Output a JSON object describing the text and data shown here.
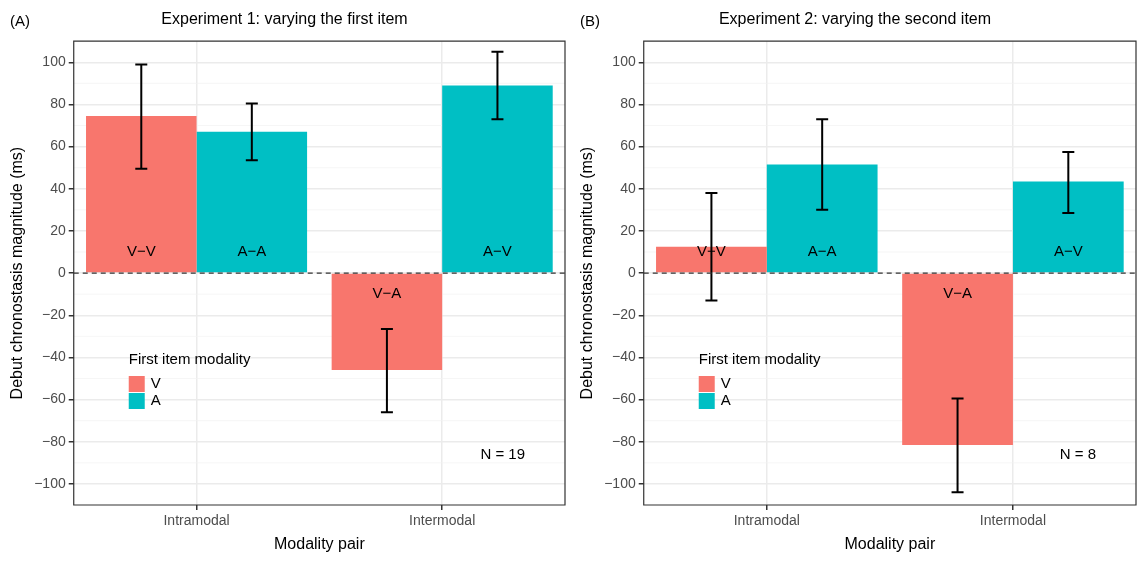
{
  "chart_data": [
    {
      "type": "bar",
      "title": "Experiment 1: varying the first item",
      "xlabel": "Modality pair",
      "ylabel": "Debut chronostasis magnitude (ms)",
      "legend_title": "First item modality",
      "annotations": [
        "(A)",
        "N = 19"
      ],
      "categories": [
        "Intramodal",
        "Intermodal"
      ],
      "series": [
        {
          "name": "V",
          "color": "#f8766d",
          "values": [
            74.5,
            -46
          ],
          "errors": [
            [
              49.5,
              99
            ],
            [
              -66,
              -26.5
            ]
          ],
          "value_labels": [
            "V−V",
            "V−A"
          ]
        },
        {
          "name": "A",
          "color": "#00bfc4",
          "values": [
            67,
            89
          ],
          "errors": [
            [
              53.5,
              80.5
            ],
            [
              73,
              105
            ]
          ],
          "value_labels": [
            "A−A",
            "A−V"
          ]
        }
      ],
      "ylim": [
        -110,
        110
      ],
      "yticks": [
        {
          "value": -100,
          "label": "−100"
        },
        {
          "value": -80,
          "label": "−80"
        },
        {
          "value": -60,
          "label": "−60"
        },
        {
          "value": -40,
          "label": "−40"
        },
        {
          "value": -20,
          "label": "−20"
        },
        0,
        20,
        40,
        60,
        80,
        100
      ],
      "ref_lines": [
        {
          "axis": "y",
          "value": 0,
          "color": "#333333",
          "line_style": "dashed"
        }
      ],
      "grid": true,
      "legend": "bottom left"
    },
    {
      "type": "bar",
      "title": "Experiment 2: varying the second item",
      "xlabel": "Modality pair",
      "ylabel": "Debut chronostasis magnitude (ms)",
      "legend_title": "First item modality",
      "annotations": [
        "(B)",
        "N = 8"
      ],
      "categories": [
        "Intramodal",
        "Intermodal"
      ],
      "series": [
        {
          "name": "V",
          "color": "#f8766d",
          "values": [
            12.5,
            -81.5
          ],
          "errors": [
            [
              -13,
              38
            ],
            [
              -104,
              -59.5
            ]
          ],
          "value_labels": [
            "V−V",
            "V−A"
          ]
        },
        {
          "name": "A",
          "color": "#00bfc4",
          "values": [
            51.5,
            43.5
          ],
          "errors": [
            [
              30,
              73
            ],
            [
              28.5,
              57.5
            ]
          ],
          "value_labels": [
            "A−A",
            "A−V"
          ]
        }
      ],
      "ylim": [
        -110,
        110
      ],
      "yticks": [
        {
          "value": -100,
          "label": "−100"
        },
        {
          "value": -80,
          "label": "−80"
        },
        {
          "value": -60,
          "label": "−60"
        },
        {
          "value": -40,
          "label": "−40"
        },
        {
          "value": -20,
          "label": "−20"
        },
        0,
        20,
        40,
        60,
        80,
        100
      ],
      "ref_lines": [
        {
          "axis": "y",
          "value": 0,
          "color": "#333333",
          "line_style": "dashed"
        }
      ],
      "grid": true,
      "legend": "bottom left"
    }
  ]
}
